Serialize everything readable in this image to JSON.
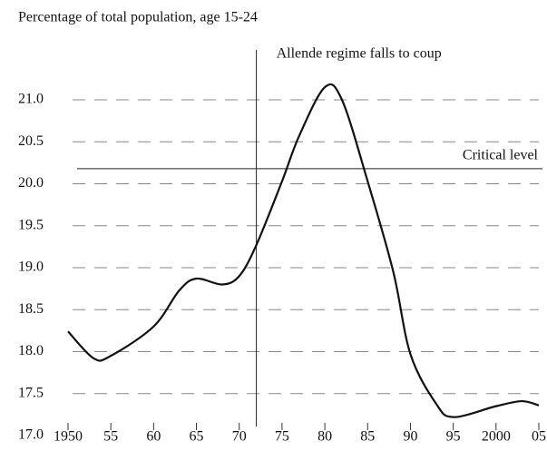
{
  "chart_data": {
    "type": "line",
    "title": "Percentage of total population, age 15-24",
    "x": [
      1950,
      1953,
      1955,
      1960,
      1963,
      1965,
      1968,
      1970,
      1972,
      1975,
      1977,
      1980,
      1982,
      1985,
      1988,
      1990,
      1993,
      1995,
      2000,
      2003,
      2005
    ],
    "series": [
      {
        "name": "Age 15-24",
        "color": "#111111",
        "values": [
          18.24,
          17.92,
          17.95,
          18.3,
          18.73,
          18.87,
          18.8,
          18.9,
          19.27,
          20.03,
          20.57,
          21.15,
          21.0,
          20.03,
          18.95,
          17.97,
          17.38,
          17.22,
          17.35,
          17.41,
          17.36
        ]
      }
    ],
    "xlim": [
      1950,
      2005
    ],
    "xticks": [
      1950,
      {
        "value": 1955,
        "label": "55"
      },
      {
        "value": 1960,
        "label": "60"
      },
      {
        "value": 1965,
        "label": "65"
      },
      {
        "value": 1970,
        "label": "70"
      },
      {
        "value": 1975,
        "label": "75"
      },
      {
        "value": 1980,
        "label": "80"
      },
      {
        "value": 1985,
        "label": "85"
      },
      {
        "value": 1990,
        "label": "90"
      },
      {
        "value": 1995,
        "label": "95"
      },
      2000,
      {
        "value": 2005,
        "label": "05"
      }
    ],
    "ylim": [
      17.0,
      21.0
    ],
    "yticks": [
      {
        "value": 17.0,
        "label": "17.0"
      },
      17.5,
      {
        "value": 18.0,
        "label": "18.0"
      },
      18.5,
      {
        "value": 19.0,
        "label": "19.0"
      },
      19.5,
      {
        "value": 20.0,
        "label": "20.0"
      },
      20.5,
      {
        "value": 21.0,
        "label": "21.0"
      }
    ],
    "grid": true,
    "annotations": [
      {
        "text": "Allende regime falls to coup",
        "x": 1972
      },
      {
        "text": "Critical level",
        "y": 20.18
      }
    ]
  }
}
